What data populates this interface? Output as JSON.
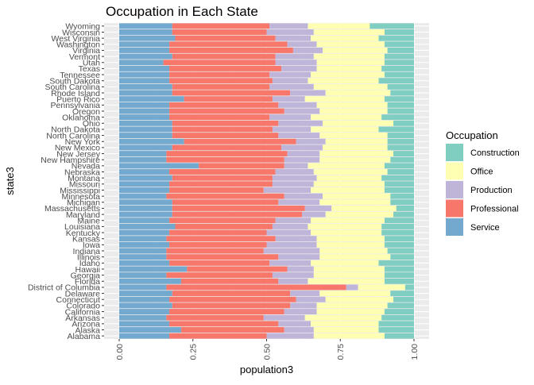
{
  "chart_data": {
    "type": "bar",
    "orientation": "horizontal",
    "stacked": true,
    "title": "Occupation in Each State",
    "xlabel": "population3",
    "ylabel": "state3",
    "xlim": [
      0,
      1
    ],
    "x_ticks": [
      "0.00",
      "0.25",
      "0.50",
      "0.75",
      "1.00"
    ],
    "x_tick_values": [
      0,
      0.25,
      0.5,
      0.75,
      1.0
    ],
    "grid": true,
    "legend_title": "Occupation",
    "legend_position": "right",
    "categories": [
      "Alabama",
      "Alaska",
      "Arizona",
      "Arkansas",
      "California",
      "Colorado",
      "Connecticut",
      "Delaware",
      "District of Columbia",
      "Florida",
      "Georgia",
      "Hawaii",
      "Idaho",
      "Illinois",
      "Indiana",
      "Iowa",
      "Kansas",
      "Kentucky",
      "Louisiana",
      "Maine",
      "Maryland",
      "Massachusetts",
      "Michigan",
      "Minnesota",
      "Mississippi",
      "Missouri",
      "Montana",
      "Nebraska",
      "Nevada",
      "New Hampshire",
      "New Jersey",
      "New Mexico",
      "New York",
      "North Carolina",
      "North Dakota",
      "Ohio",
      "Oklahoma",
      "Oregon",
      "Pennsylvania",
      "Puerto Rico",
      "Rhode Island",
      "South Carolina",
      "South Dakota",
      "Tennessee",
      "Texas",
      "Utah",
      "Vermont",
      "Virginia",
      "Washington",
      "West Virginia",
      "Wisconsin",
      "Wyoming"
    ],
    "legend_order": [
      "Construction",
      "Office",
      "Production",
      "Professional",
      "Service"
    ],
    "stack_order": [
      "Service",
      "Professional",
      "Production",
      "Office",
      "Construction"
    ],
    "colors": {
      "Construction": "#80CDC1",
      "Office": "#FFFFB3",
      "Production": "#BEB5D9",
      "Professional": "#F7776B",
      "Service": "#74A9CF"
    },
    "series": [
      {
        "name": "Service",
        "values": [
          0.17,
          0.21,
          0.17,
          0.16,
          0.17,
          0.18,
          0.17,
          0.18,
          0.16,
          0.21,
          0.16,
          0.23,
          0.17,
          0.16,
          0.16,
          0.17,
          0.16,
          0.17,
          0.19,
          0.17,
          0.18,
          0.18,
          0.18,
          0.16,
          0.17,
          0.17,
          0.18,
          0.17,
          0.27,
          0.16,
          0.16,
          0.18,
          0.22,
          0.18,
          0.18,
          0.18,
          0.17,
          0.17,
          0.17,
          0.22,
          0.18,
          0.18,
          0.17,
          0.17,
          0.17,
          0.15,
          0.18,
          0.17,
          0.17,
          0.19,
          0.18,
          0.18
        ]
      },
      {
        "name": "Professional",
        "values": [
          0.33,
          0.35,
          0.37,
          0.33,
          0.39,
          0.4,
          0.43,
          0.4,
          0.61,
          0.33,
          0.36,
          0.34,
          0.34,
          0.38,
          0.33,
          0.33,
          0.37,
          0.33,
          0.33,
          0.36,
          0.44,
          0.45,
          0.36,
          0.4,
          0.32,
          0.35,
          0.34,
          0.36,
          0.29,
          0.4,
          0.41,
          0.37,
          0.38,
          0.36,
          0.34,
          0.36,
          0.34,
          0.39,
          0.37,
          0.3,
          0.4,
          0.33,
          0.35,
          0.34,
          0.38,
          0.38,
          0.35,
          0.42,
          0.4,
          0.34,
          0.32,
          0.33
        ]
      },
      {
        "name": "Production",
        "values": [
          0.16,
          0.1,
          0.11,
          0.14,
          0.11,
          0.09,
          0.1,
          0.1,
          0.04,
          0.1,
          0.14,
          0.09,
          0.14,
          0.14,
          0.19,
          0.17,
          0.14,
          0.15,
          0.12,
          0.12,
          0.08,
          0.09,
          0.14,
          0.13,
          0.16,
          0.14,
          0.15,
          0.13,
          0.08,
          0.12,
          0.11,
          0.14,
          0.1,
          0.14,
          0.13,
          0.15,
          0.14,
          0.12,
          0.13,
          0.11,
          0.12,
          0.15,
          0.12,
          0.14,
          0.12,
          0.14,
          0.13,
          0.1,
          0.1,
          0.12,
          0.16,
          0.13
        ]
      },
      {
        "name": "Office",
        "values": [
          0.24,
          0.22,
          0.23,
          0.26,
          0.23,
          0.24,
          0.23,
          0.24,
          0.16,
          0.26,
          0.24,
          0.24,
          0.23,
          0.24,
          0.23,
          0.23,
          0.23,
          0.24,
          0.25,
          0.25,
          0.23,
          0.22,
          0.24,
          0.23,
          0.25,
          0.24,
          0.22,
          0.25,
          0.26,
          0.24,
          0.25,
          0.22,
          0.21,
          0.23,
          0.23,
          0.24,
          0.24,
          0.23,
          0.24,
          0.27,
          0.22,
          0.25,
          0.24,
          0.25,
          0.22,
          0.23,
          0.24,
          0.22,
          0.23,
          0.23,
          0.24,
          0.21
        ]
      },
      {
        "name": "Construction",
        "values": [
          0.1,
          0.12,
          0.12,
          0.11,
          0.1,
          0.09,
          0.07,
          0.08,
          0.03,
          0.1,
          0.1,
          0.1,
          0.12,
          0.08,
          0.09,
          0.1,
          0.1,
          0.11,
          0.11,
          0.1,
          0.07,
          0.06,
          0.08,
          0.08,
          0.1,
          0.1,
          0.11,
          0.09,
          0.1,
          0.08,
          0.07,
          0.09,
          0.09,
          0.09,
          0.12,
          0.07,
          0.11,
          0.09,
          0.09,
          0.1,
          0.08,
          0.09,
          0.12,
          0.1,
          0.11,
          0.1,
          0.1,
          0.09,
          0.1,
          0.12,
          0.1,
          0.15
        ]
      }
    ]
  }
}
